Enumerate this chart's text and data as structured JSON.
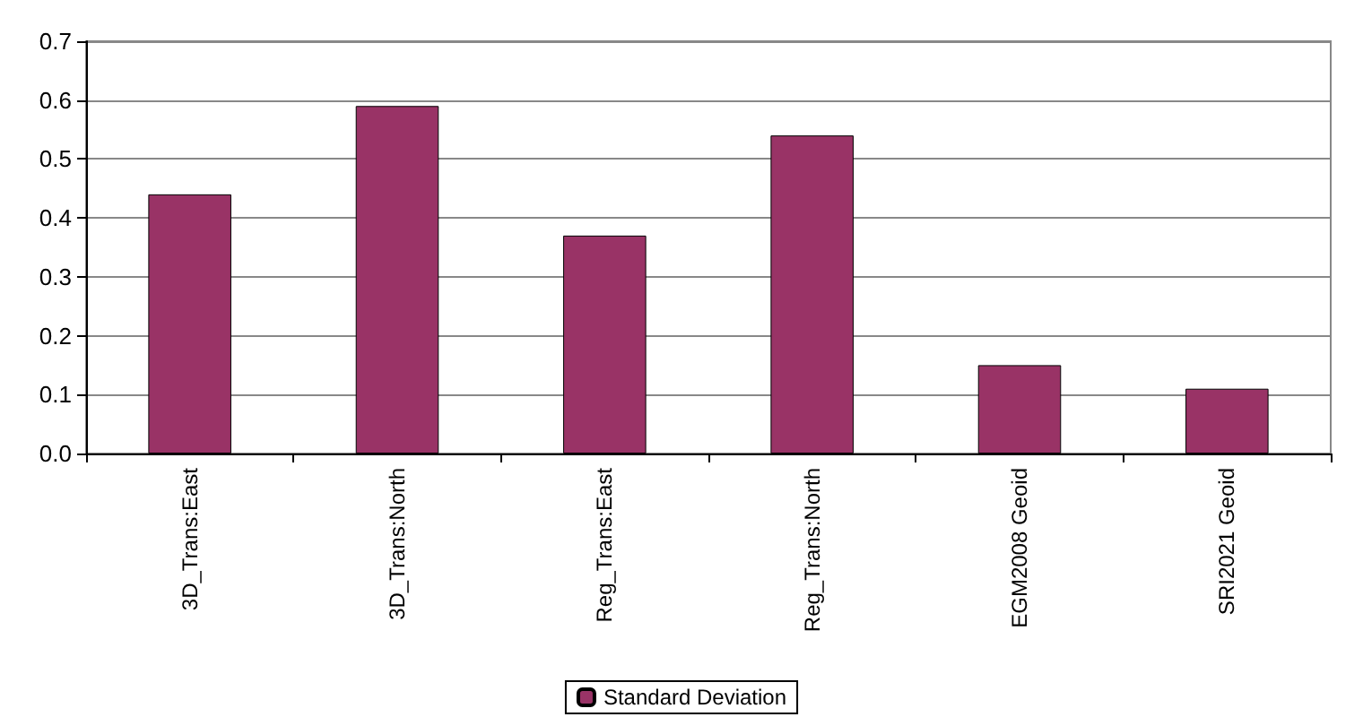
{
  "chart_data": {
    "type": "bar",
    "categories": [
      "3D_Trans:East",
      "3D_Trans:North",
      "Reg_Trans:East",
      "Reg_Trans:North",
      "EGM2008 Geoid",
      "SRI2021 Geoid"
    ],
    "series": [
      {
        "name": "Standard Deviation",
        "color": "#993366",
        "values": [
          0.44,
          0.59,
          0.37,
          0.54,
          0.15,
          0.11
        ]
      }
    ],
    "ylim": [
      0,
      0.7
    ],
    "yticks": [
      {
        "value": 0,
        "label": "0.0"
      },
      {
        "value": 0.1,
        "label": "0.1"
      },
      {
        "value": 0.2,
        "label": "0.2"
      },
      {
        "value": 0.3,
        "label": "0.3"
      },
      {
        "value": 0.4,
        "label": "0.4"
      },
      {
        "value": 0.5,
        "label": "0.5"
      },
      {
        "value": 0.6,
        "label": "0.6"
      },
      {
        "value": 0.7,
        "label": "0.7"
      }
    ],
    "grid": "y",
    "legend": "bottom"
  }
}
